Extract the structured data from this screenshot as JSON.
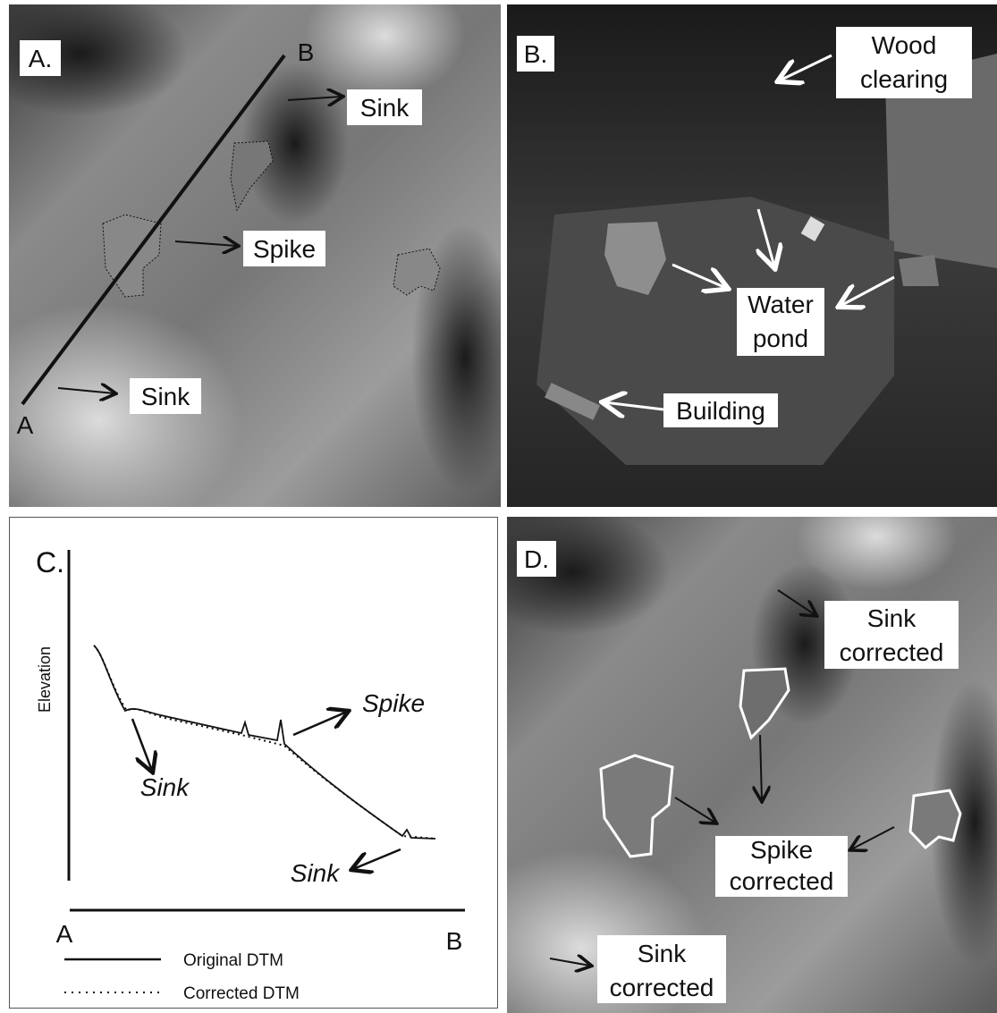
{
  "panels": [
    {
      "label": "A.",
      "profile_start": "A",
      "profile_end": "B",
      "annotations": [
        {
          "lines": [
            "Sink"
          ]
        },
        {
          "lines": [
            "Spike"
          ]
        },
        {
          "lines": [
            "Sink"
          ]
        }
      ]
    },
    {
      "label": "B.",
      "annotations": [
        {
          "lines": [
            "Wood",
            "clearing"
          ]
        },
        {
          "lines": [
            "Water",
            "pond"
          ]
        },
        {
          "lines": [
            "Building"
          ]
        }
      ]
    },
    {
      "label": "C.",
      "y_axis_label": "Elevation",
      "x_start": "A",
      "x_end": "B",
      "annotations": [
        {
          "lines": [
            "Spike"
          ]
        },
        {
          "lines": [
            "Sink"
          ]
        },
        {
          "lines": [
            "Sink"
          ]
        }
      ],
      "legend": [
        "Original DTM",
        "Corrected DTM"
      ]
    },
    {
      "label": "D.",
      "annotations": [
        {
          "lines": [
            "Sink",
            "corrected"
          ]
        },
        {
          "lines": [
            "Spike",
            "corrected"
          ]
        },
        {
          "lines": [
            "Sink",
            "corrected"
          ]
        }
      ]
    }
  ]
}
